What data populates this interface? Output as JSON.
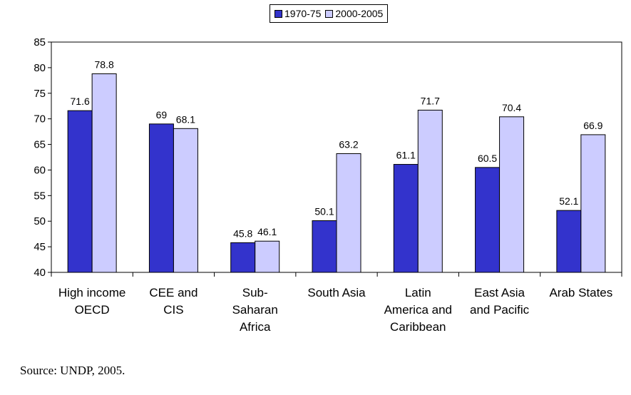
{
  "chart_data": {
    "type": "bar",
    "categories": [
      [
        "High income",
        "OECD"
      ],
      [
        "CEE and",
        "CIS"
      ],
      [
        "Sub-",
        "Saharan",
        "Africa"
      ],
      [
        "South Asia"
      ],
      [
        "Latin",
        "America and",
        "Caribbean"
      ],
      [
        "East Asia",
        "and Pacific"
      ],
      [
        "Arab States"
      ]
    ],
    "series": [
      {
        "name": "1970-75",
        "values": [
          71.6,
          69,
          45.8,
          50.1,
          61.1,
          60.5,
          52.1
        ],
        "color": "#3333CC"
      },
      {
        "name": "2000-2005",
        "values": [
          78.8,
          68.1,
          46.1,
          63.2,
          71.7,
          70.4,
          66.9
        ],
        "color": "#CCCCFF"
      }
    ],
    "ylim": [
      40,
      85
    ],
    "yticks": [
      40,
      45,
      50,
      55,
      60,
      65,
      70,
      75,
      80,
      85
    ],
    "grid": false,
    "legend_position": "top-center"
  },
  "source": "Source: UNDP, 2005."
}
